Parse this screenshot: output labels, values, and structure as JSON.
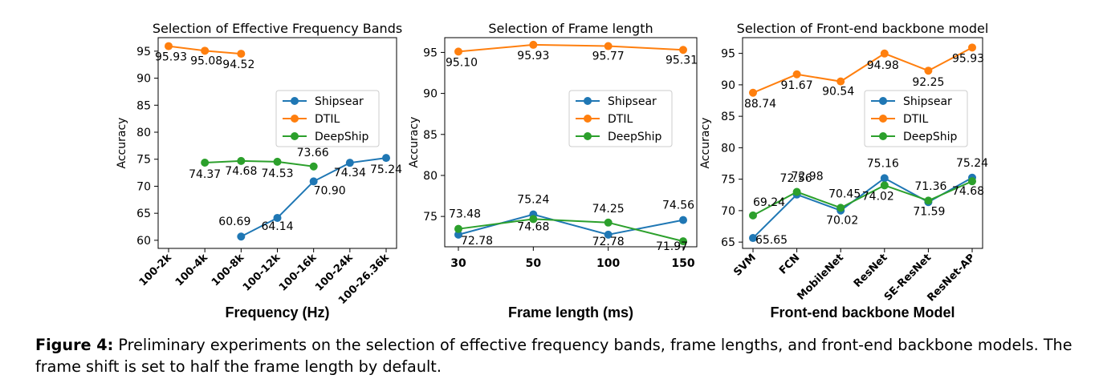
{
  "chart_data": [
    {
      "type": "line",
      "title": "Selection of Effective Frequency Bands",
      "xlabel": "Frequency (Hz)",
      "ylabel": "Accuracy",
      "categories": [
        "100-2k",
        "100-4k",
        "100-8k",
        "100-12k",
        "100-16k",
        "100-24k",
        "100-26.36k"
      ],
      "ylim": [
        58.5,
        97.5
      ],
      "yticks": [
        60,
        65,
        70,
        75,
        80,
        85,
        90,
        95
      ],
      "series": [
        {
          "name": "Shipsear",
          "color": "#1f77b4",
          "values": [
            null,
            null,
            60.69,
            64.14,
            70.9,
            74.34,
            75.24
          ],
          "labels": [
            null,
            null,
            "60.69",
            "64.14",
            "70.90",
            "74.34",
            "75.24"
          ]
        },
        {
          "name": "DTIL",
          "color": "#ff7f0e",
          "values": [
            95.93,
            95.08,
            94.52,
            null,
            null,
            null,
            null
          ],
          "labels": [
            "95.93",
            "95.08",
            "94.52",
            null,
            null,
            null,
            null
          ]
        },
        {
          "name": "DeepShip",
          "color": "#2ca02c",
          "values": [
            null,
            74.37,
            74.68,
            74.53,
            73.66,
            null,
            null
          ],
          "labels": [
            null,
            "74.37",
            "74.68",
            "74.53",
            "73.66",
            null,
            null
          ]
        }
      ],
      "legend": "center-right",
      "grid": false
    },
    {
      "type": "line",
      "title": "Selection of Frame length",
      "xlabel": "Frame length (ms)",
      "ylabel": "Accuracy",
      "categories": [
        "30",
        "50",
        "100",
        "150"
      ],
      "ylim": [
        71.3,
        96.8
      ],
      "yticks": [
        75,
        80,
        85,
        90,
        95
      ],
      "series": [
        {
          "name": "Shipsear",
          "color": "#1f77b4",
          "values": [
            72.78,
            75.24,
            72.78,
            74.56
          ],
          "labels": [
            "72.78",
            "75.24",
            "72.78",
            "74.56"
          ]
        },
        {
          "name": "DTIL",
          "color": "#ff7f0e",
          "values": [
            95.1,
            95.93,
            95.77,
            95.31
          ],
          "labels": [
            "95.10",
            "95.93",
            "95.77",
            "95.31"
          ]
        },
        {
          "name": "DeepShip",
          "color": "#2ca02c",
          "values": [
            73.48,
            74.68,
            74.25,
            71.97
          ],
          "labels": [
            "73.48",
            "74.68",
            "74.25",
            "71.97"
          ]
        }
      ],
      "legend": "center-right",
      "grid": false
    },
    {
      "type": "line",
      "title": "Selection of Front-end backbone model",
      "xlabel": "Front-end backbone Model",
      "ylabel": "Accuracy",
      "categories": [
        "SVM",
        "FCN",
        "MobileNet",
        "ResNet",
        "SE-ResNet",
        "ResNet-AP"
      ],
      "ylim": [
        64.0,
        97.5
      ],
      "yticks": [
        65,
        70,
        75,
        80,
        85,
        90,
        95
      ],
      "series": [
        {
          "name": "Shipsear",
          "color": "#1f77b4",
          "values": [
            65.65,
            72.56,
            70.02,
            75.16,
            71.36,
            75.24
          ],
          "labels": [
            "65.65",
            "72.56",
            "70.02",
            "75.16",
            "71.36",
            "75.24"
          ]
        },
        {
          "name": "DTIL",
          "color": "#ff7f0e",
          "values": [
            88.74,
            91.67,
            90.54,
            94.98,
            92.25,
            95.93
          ],
          "labels": [
            "88.74",
            "91.67",
            "90.54",
            "94.98",
            "92.25",
            "95.93"
          ]
        },
        {
          "name": "DeepShip",
          "color": "#2ca02c",
          "values": [
            69.24,
            72.98,
            70.45,
            74.02,
            71.59,
            74.68
          ],
          "labels": [
            "69.24",
            "72.98",
            "70.45",
            "74.02",
            "71.59",
            "74.68"
          ]
        }
      ],
      "legend": "center-right",
      "grid": false
    }
  ],
  "caption": {
    "label": "Figure 4:",
    "text": " Preliminary experiments on the selection of effective frequency bands, frame lengths, and front-end backbone models. The frame shift is set to half the frame length by default."
  }
}
